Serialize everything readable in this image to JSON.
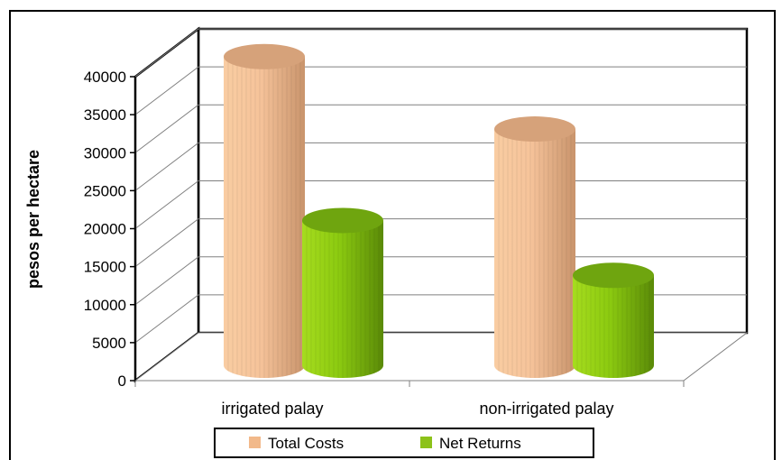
{
  "chart_data": {
    "type": "bar",
    "style": "3d-cylinder",
    "categories": [
      "irrigated palay",
      "non-irrigated palay"
    ],
    "series": [
      {
        "name": "Total Costs",
        "values": [
          40500,
          31000
        ],
        "color": "#f2b98a"
      },
      {
        "name": "Net Returns",
        "values": [
          19000,
          11800
        ],
        "color": "#8cc21a"
      }
    ],
    "ylabel": "pesos  per  hectare",
    "yticks": [
      "0",
      "5000",
      "10000",
      "15000",
      "20000",
      "25000",
      "30000",
      "35000",
      "40000"
    ],
    "ylim": [
      0,
      40000
    ],
    "grid": true,
    "legend_position": "bottom"
  }
}
